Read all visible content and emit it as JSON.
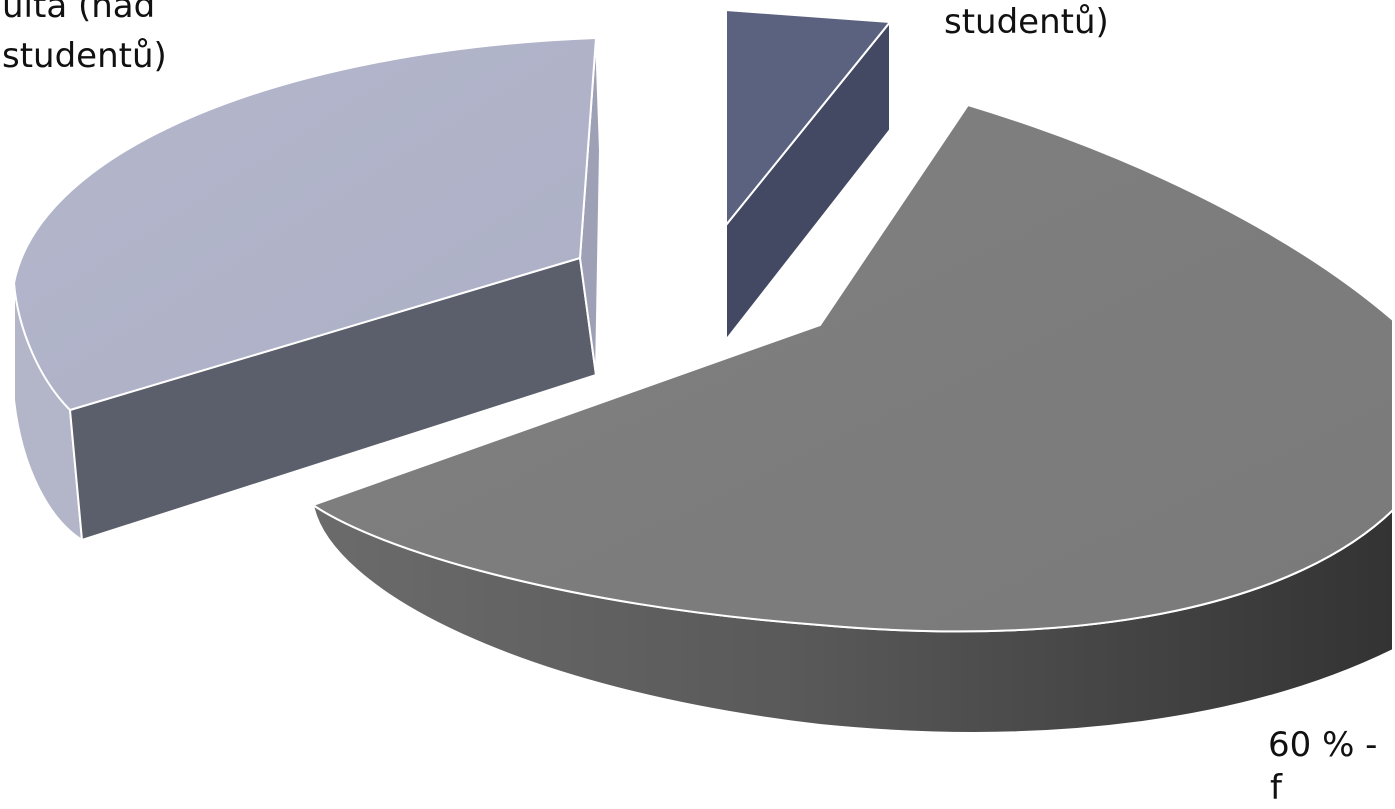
{
  "chart_data": {
    "type": "pie",
    "style": "3d-exploded",
    "slices": [
      {
        "label_lines": [
          "60 % -",
          "f"
        ],
        "value": 60,
        "color": "#7b7b7b",
        "side_color": "#5a5a5a"
      },
      {
        "label_lines": [
          "ulta (nad",
          "studentů)"
        ],
        "value": 35,
        "color": "#b0b3c9",
        "side_color": "#5b5e6b"
      },
      {
        "label_lines": [
          "studentů)"
        ],
        "value": 5,
        "color": "#5a6280",
        "side_color": "#434863"
      }
    ]
  }
}
